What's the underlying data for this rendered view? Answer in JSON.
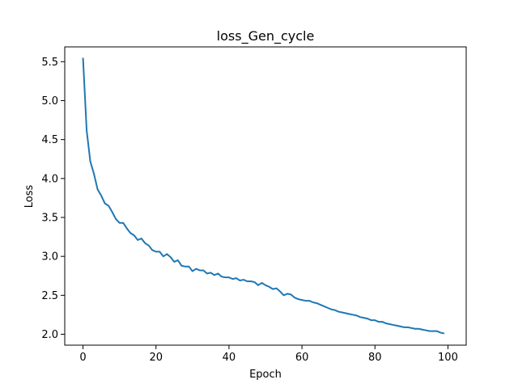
{
  "chart_data": {
    "type": "line",
    "title": "loss_Gen_cycle",
    "xlabel": "Epoch",
    "ylabel": "Loss",
    "xlim": [
      -5,
      105
    ],
    "ylim": [
      1.86,
      5.69
    ],
    "xticks": [
      0,
      20,
      40,
      60,
      80,
      100
    ],
    "yticks": [
      2.0,
      2.5,
      3.0,
      3.5,
      4.0,
      4.5,
      5.0,
      5.5
    ],
    "grid": false,
    "line_color": "#1f77b4",
    "series": [
      {
        "x": [
          0,
          1,
          2,
          3,
          4,
          5,
          6,
          7,
          8,
          9,
          10,
          11,
          12,
          13,
          14,
          15,
          16,
          17,
          18,
          19,
          20,
          21,
          22,
          23,
          24,
          25,
          26,
          27,
          28,
          29,
          30,
          31,
          32,
          33,
          34,
          35,
          36,
          37,
          38,
          39,
          40,
          41,
          42,
          43,
          44,
          45,
          46,
          47,
          48,
          49,
          50,
          51,
          52,
          53,
          54,
          55,
          56,
          57,
          58,
          59,
          60,
          61,
          62,
          63,
          64,
          65,
          66,
          67,
          68,
          69,
          70,
          71,
          72,
          73,
          74,
          75,
          76,
          77,
          78,
          79,
          80,
          81,
          82,
          83,
          84,
          85,
          86,
          87,
          88,
          89,
          90,
          91,
          92,
          93,
          94,
          95,
          96,
          97,
          98,
          99
        ],
        "y": [
          5.55,
          4.62,
          4.22,
          4.06,
          3.86,
          3.78,
          3.68,
          3.65,
          3.57,
          3.48,
          3.43,
          3.43,
          3.36,
          3.3,
          3.27,
          3.21,
          3.23,
          3.17,
          3.14,
          3.08,
          3.06,
          3.06,
          3.0,
          3.03,
          2.99,
          2.93,
          2.95,
          2.88,
          2.87,
          2.87,
          2.81,
          2.84,
          2.82,
          2.82,
          2.78,
          2.79,
          2.76,
          2.78,
          2.74,
          2.73,
          2.73,
          2.71,
          2.72,
          2.69,
          2.7,
          2.68,
          2.68,
          2.67,
          2.63,
          2.66,
          2.63,
          2.61,
          2.58,
          2.59,
          2.55,
          2.5,
          2.52,
          2.51,
          2.47,
          2.45,
          2.44,
          2.43,
          2.43,
          2.41,
          2.4,
          2.38,
          2.36,
          2.34,
          2.32,
          2.31,
          2.29,
          2.28,
          2.27,
          2.26,
          2.25,
          2.24,
          2.22,
          2.21,
          2.2,
          2.18,
          2.18,
          2.16,
          2.16,
          2.14,
          2.13,
          2.12,
          2.11,
          2.1,
          2.09,
          2.09,
          2.08,
          2.07,
          2.07,
          2.06,
          2.05,
          2.04,
          2.04,
          2.04,
          2.02,
          2.01
        ]
      }
    ]
  }
}
